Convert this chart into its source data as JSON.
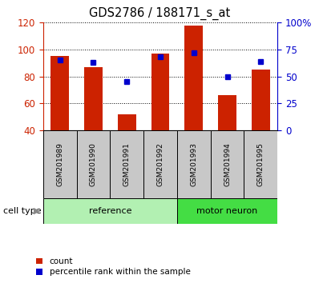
{
  "title": "GDS2786 / 188171_s_at",
  "samples": [
    "GSM201989",
    "GSM201990",
    "GSM201991",
    "GSM201992",
    "GSM201993",
    "GSM201994",
    "GSM201995"
  ],
  "red_counts": [
    95,
    87,
    52,
    97,
    118,
    66,
    85
  ],
  "blue_percentiles": [
    65,
    63,
    45,
    68,
    72,
    50,
    64
  ],
  "ylim_left": [
    40,
    120
  ],
  "ylim_right": [
    0,
    100
  ],
  "yticks_left": [
    40,
    60,
    80,
    100,
    120
  ],
  "yticks_right": [
    0,
    25,
    50,
    75,
    100
  ],
  "ytick_labels_right": [
    "0",
    "25",
    "50",
    "75",
    "100%"
  ],
  "groups": [
    {
      "label": "reference",
      "indices": [
        0,
        1,
        2,
        3
      ],
      "color": "#b2f0b2"
    },
    {
      "label": "motor neuron",
      "indices": [
        4,
        5,
        6
      ],
      "color": "#44dd44"
    }
  ],
  "bar_color": "#cc2200",
  "dot_color": "#0000cc",
  "bar_width": 0.55,
  "left_axis_color": "#cc2200",
  "right_axis_color": "#0000cc",
  "bg_color": "#c8c8c8",
  "cell_type_label": "cell type",
  "legend_count_label": "count",
  "legend_percentile_label": "percentile rank within the sample"
}
